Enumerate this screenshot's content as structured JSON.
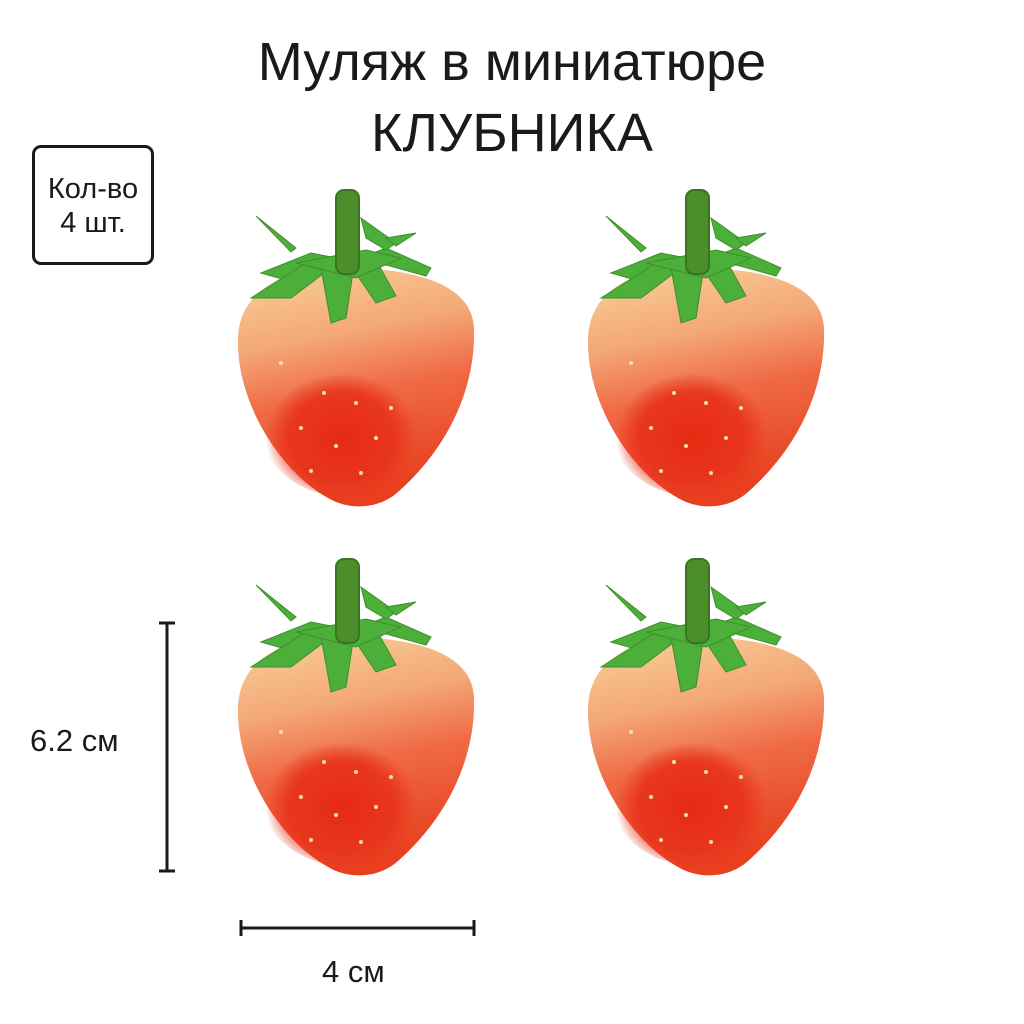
{
  "title": {
    "line1": "Муляж в миниатюре",
    "line2": "КЛУБНИКА"
  },
  "badge": {
    "line1": "Кол-во",
    "line2": "4 шт."
  },
  "dimensions": {
    "height": "6.2 см",
    "width": "4 см"
  },
  "product": {
    "name": "strawberry",
    "count": 4
  },
  "colors": {
    "berry_red": "#e8321c",
    "berry_peach": "#f6c68e",
    "leaf": "#4caf3a",
    "stem": "#4c8f2a"
  }
}
